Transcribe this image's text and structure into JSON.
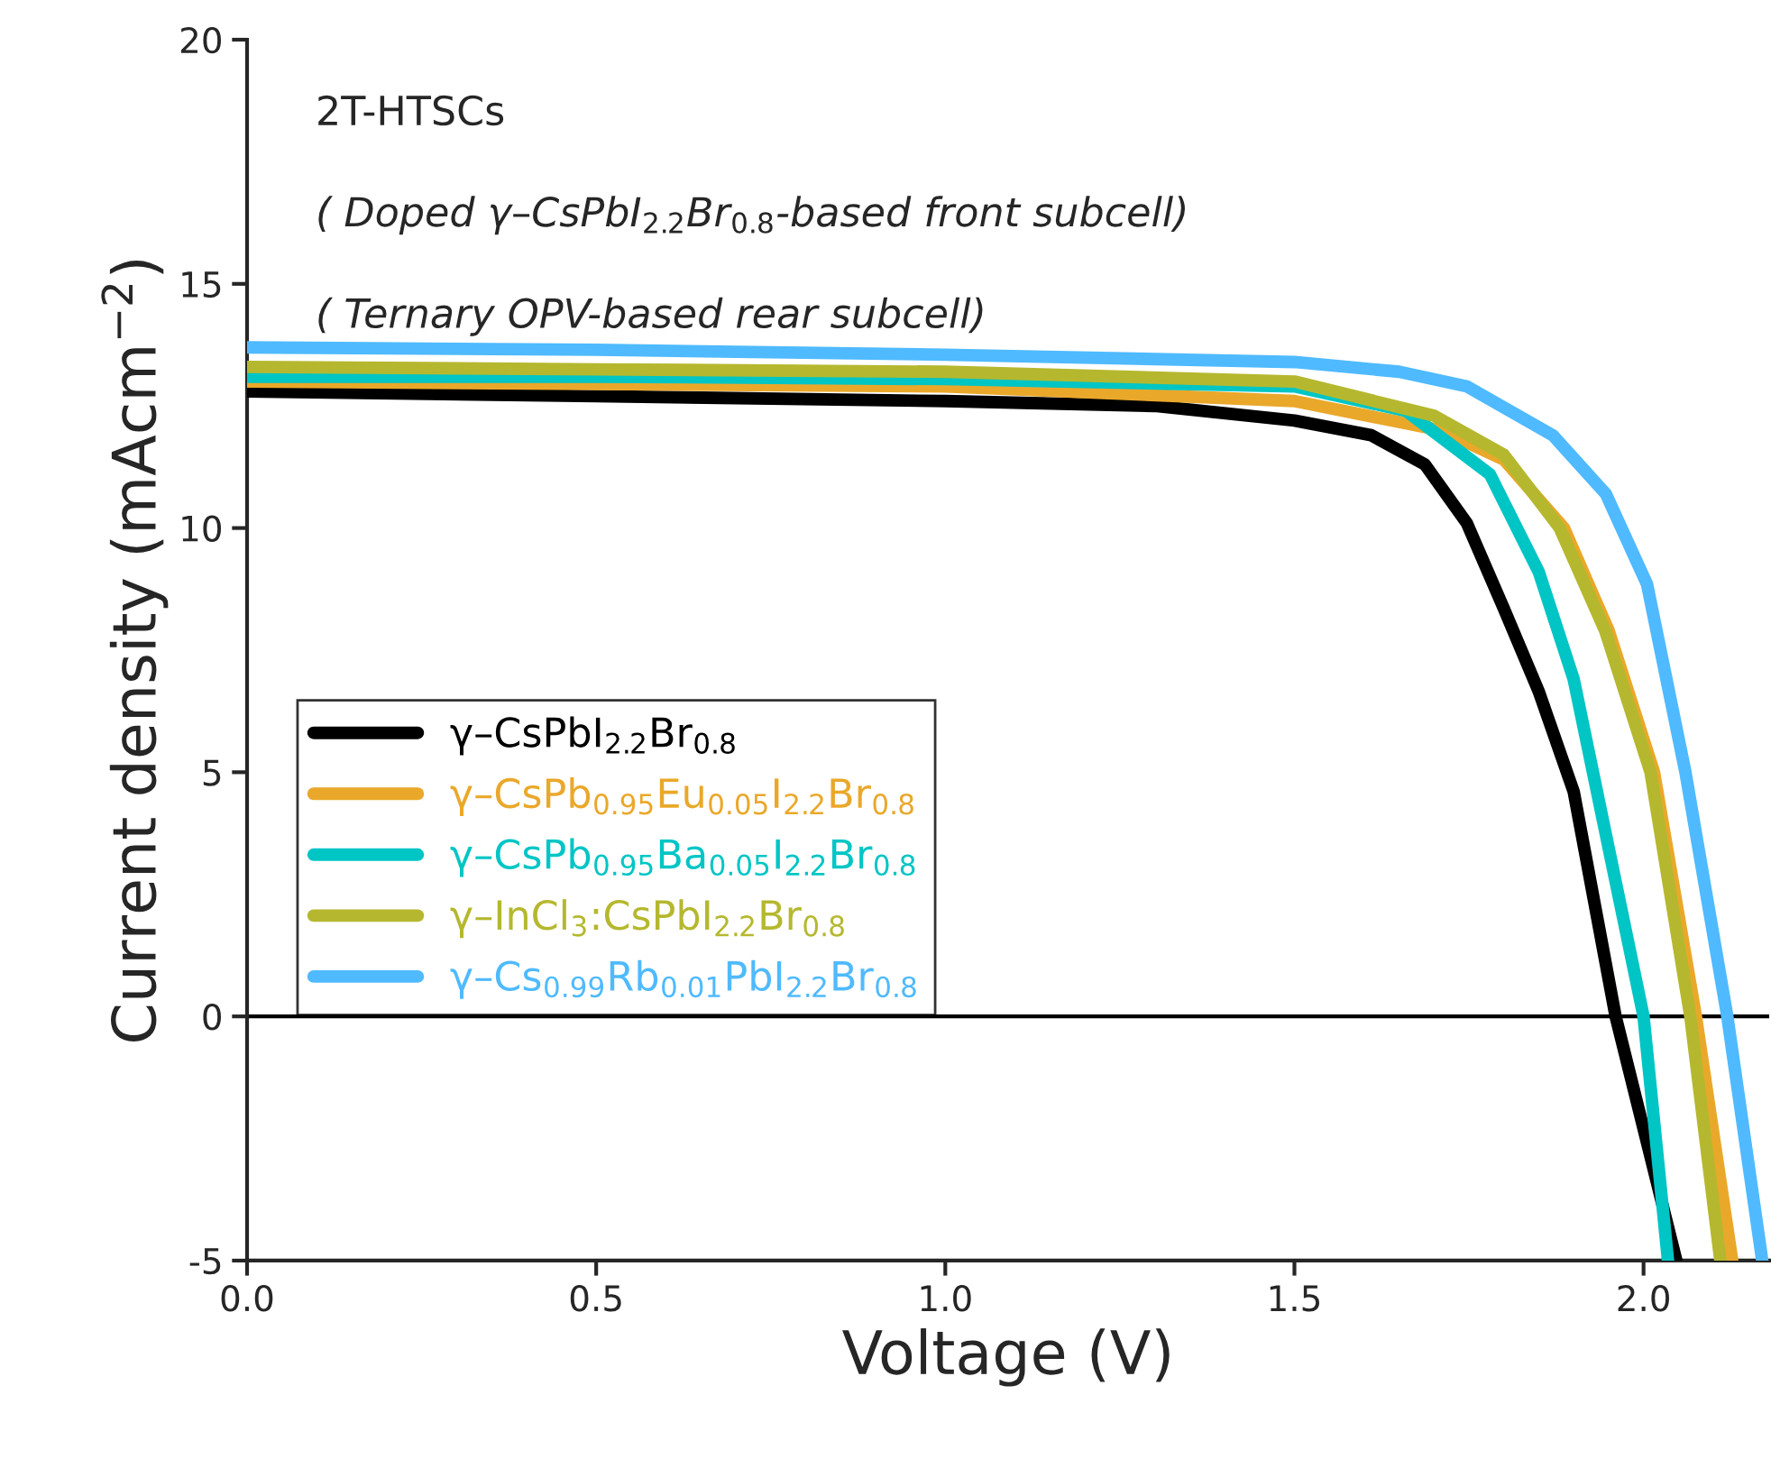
{
  "chart_data": {
    "type": "line",
    "xlabel": "Voltage (V)",
    "ylabel": "Current density (mAcm$^{−2}$)",
    "annotations": [
      "2T-HTSCs",
      "( Doped γ–CsPbI$_{2.2}$Br$_{0.8}$-based front subcell)",
      "( Ternary OPV-based rear subcell)"
    ],
    "xlim": [
      0,
      2.18
    ],
    "ylim": [
      -5,
      20
    ],
    "xticks": [
      {
        "value": 0,
        "label": "0.0"
      },
      0.5,
      {
        "value": 1,
        "label": "1.0"
      },
      1.5,
      {
        "value": 2,
        "label": "2.0"
      }
    ],
    "yticks": [
      -5,
      0,
      5,
      10,
      15,
      20
    ],
    "ref_lines": [
      {
        "axis": "y",
        "value": 0,
        "color": "#000000"
      }
    ],
    "legend": "left",
    "grid": false,
    "line_style": "solid",
    "marker": "none",
    "series": [
      {
        "name": "γ–CsPbI$_{2.2}$Br$_{0.8}$",
        "color": "#000000",
        "x": [
          0,
          0.5,
          1.0,
          1.3,
          1.5,
          1.61,
          1.687,
          1.747,
          1.8,
          1.85,
          1.9,
          1.96,
          2.047
        ],
        "values": [
          12.8,
          12.7,
          12.6,
          12.5,
          12.2,
          11.9,
          11.3,
          10.1,
          8.35,
          6.65,
          4.6,
          0,
          -5
        ]
      },
      {
        "name": "γ–CsPb$_{0.95}$Eu$_{0.05}$I$_{2.2}$Br$_{0.8}$",
        "color": "#eaa82a",
        "x": [
          0,
          0.5,
          1.0,
          1.5,
          1.71,
          1.8,
          1.886,
          1.95,
          2.015,
          2.075,
          2.127
        ],
        "values": [
          13.0,
          12.95,
          12.9,
          12.6,
          12.0,
          11.4,
          10.0,
          7.9,
          5.0,
          0,
          -5
        ]
      },
      {
        "name": "γ–CsPb$_{0.95}$Ba$_{0.05}$I$_{2.2}$Br$_{0.8}$",
        "color": "#00c5c5",
        "x": [
          0,
          0.5,
          1.0,
          1.5,
          1.66,
          1.78,
          1.85,
          1.9,
          2.0,
          2.035
        ],
        "values": [
          13.1,
          13.1,
          13.05,
          12.9,
          12.4,
          11.1,
          9.1,
          6.9,
          0,
          -5
        ]
      },
      {
        "name": "γ–InCl$_{3}$:CsPbI$_{2.2}$Br$_{0.8}$",
        "color": "#b5b82e",
        "x": [
          0,
          0.5,
          1.0,
          1.5,
          1.7,
          1.8,
          1.88,
          1.945,
          2.01,
          2.067,
          2.11
        ],
        "values": [
          13.3,
          13.25,
          13.2,
          13.0,
          12.3,
          11.5,
          10.0,
          7.9,
          5.0,
          0,
          -5
        ]
      },
      {
        "name": "γ–Cs$_{0.99}$Rb$_{0.01}$PbI$_{2.2}$Br$_{0.8}$",
        "color": "#4fbaff",
        "x": [
          0,
          0.5,
          1.0,
          1.5,
          1.65,
          1.747,
          1.87,
          1.946,
          2.005,
          2.06,
          2.12,
          2.17
        ],
        "values": [
          13.7,
          13.65,
          13.55,
          13.4,
          13.2,
          12.9,
          11.9,
          10.7,
          8.85,
          5.0,
          0,
          -5
        ]
      }
    ]
  }
}
